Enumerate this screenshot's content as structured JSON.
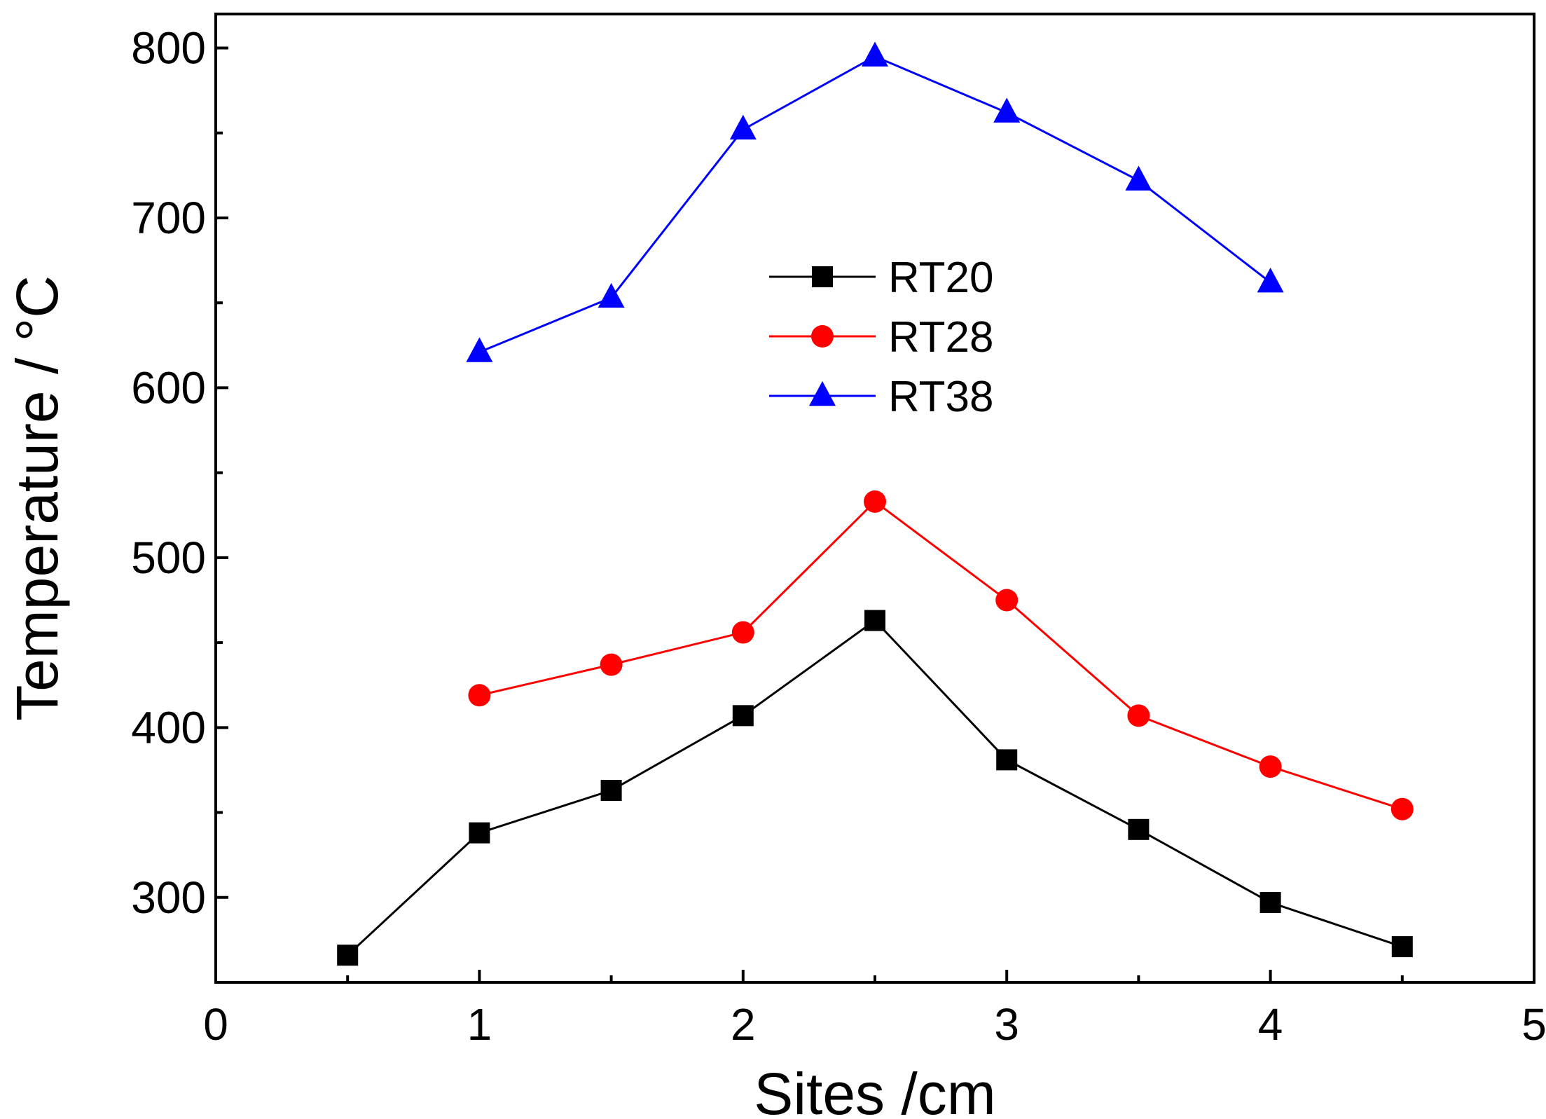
{
  "chart_data": {
    "type": "line",
    "title": "",
    "xlabel": "Sites /cm",
    "ylabel": "Temperature / °C",
    "xlim": [
      0,
      5
    ],
    "ylim": [
      250,
      820
    ],
    "xticks": [
      0,
      1,
      2,
      3,
      4,
      5
    ],
    "yticks": [
      300,
      400,
      500,
      600,
      700,
      800
    ],
    "grid": false,
    "legend_position": "center",
    "series": [
      {
        "name": "RT20",
        "color": "#000000",
        "marker": "square",
        "x": [
          0.5,
          1.0,
          1.5,
          2.0,
          2.5,
          3.0,
          3.5,
          4.0,
          4.5
        ],
        "y": [
          266,
          338,
          363,
          407,
          463,
          381,
          340,
          297,
          271
        ]
      },
      {
        "name": "RT28",
        "color": "#ff0000",
        "marker": "circle",
        "x": [
          1.0,
          1.5,
          2.0,
          2.5,
          3.0,
          3.5,
          4.0,
          4.5
        ],
        "y": [
          419,
          437,
          456,
          533,
          475,
          407,
          377,
          352
        ]
      },
      {
        "name": "RT38",
        "color": "#0000ff",
        "marker": "triangle",
        "x": [
          1.0,
          1.5,
          2.0,
          2.5,
          3.0,
          3.5,
          4.0
        ],
        "y": [
          621,
          653,
          752,
          795,
          762,
          722,
          662
        ]
      }
    ]
  }
}
